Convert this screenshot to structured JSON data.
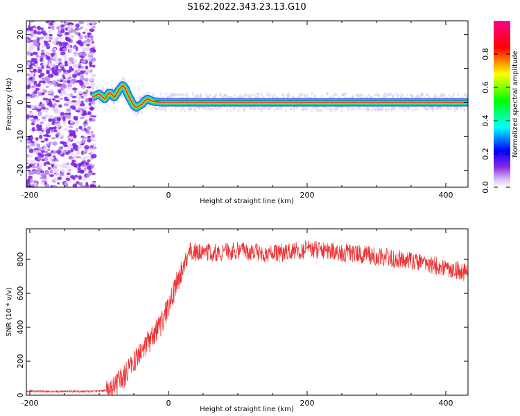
{
  "title": "S162.2022.343.23.13.G10",
  "chart_data": [
    {
      "type": "heatmap",
      "xlabel": "Height of straight line (km)",
      "ylabel": "Frequency (Hz)",
      "xlim": [
        -205,
        432
      ],
      "ylim": [
        -25,
        24
      ],
      "xticks": [
        -200,
        0,
        200,
        400
      ],
      "yticks": [
        -20,
        -10,
        0,
        10,
        20
      ],
      "colorbar": {
        "label": "Normalized spectral amplitude",
        "range": [
          0,
          1
        ],
        "ticks": [
          0.0,
          0.2,
          0.4,
          0.6,
          0.8
        ],
        "colors": [
          "#ffffff",
          "#8a2be2",
          "#0000ff",
          "#00ffff",
          "#00ff00",
          "#ffff00",
          "#ff0000",
          "#ff00aa"
        ]
      },
      "noise_region_x": [
        -205,
        -107
      ],
      "ridge": {
        "x": [
          -110,
          -100,
          -92,
          -85,
          -78,
          -72,
          -66,
          -62,
          -58,
          -54,
          -50,
          -46,
          -42,
          -38,
          -34,
          -30,
          -25,
          -20,
          -10,
          0,
          432
        ],
        "y": [
          1.5,
          2.5,
          1.0,
          3.0,
          1.5,
          3.5,
          5.0,
          4.0,
          2.0,
          0.5,
          -1.0,
          -1.5,
          -1.0,
          -0.5,
          0.5,
          1.0,
          0.5,
          0.2,
          0.0,
          0.0,
          0.0
        ]
      }
    },
    {
      "type": "line",
      "xlabel": "Height of straight line (km)",
      "ylabel": "SNR (10 * v/v)",
      "xlim": [
        -205,
        432
      ],
      "ylim": [
        0,
        980
      ],
      "xticks": [
        -200,
        0,
        200,
        400
      ],
      "yticks": [
        0,
        200,
        400,
        600,
        800
      ],
      "color": "#ee3333",
      "trend": {
        "x": [
          -205,
          -150,
          -100,
          -85,
          -70,
          -55,
          -40,
          -25,
          -10,
          0,
          10,
          20,
          30,
          60,
          100,
          150,
          200,
          250,
          300,
          350,
          400,
          432
        ],
        "y": [
          25,
          22,
          24,
          35,
          80,
          160,
          260,
          330,
          420,
          520,
          640,
          740,
          850,
          840,
          850,
          830,
          860,
          840,
          820,
          790,
          750,
          720
        ]
      }
    }
  ]
}
